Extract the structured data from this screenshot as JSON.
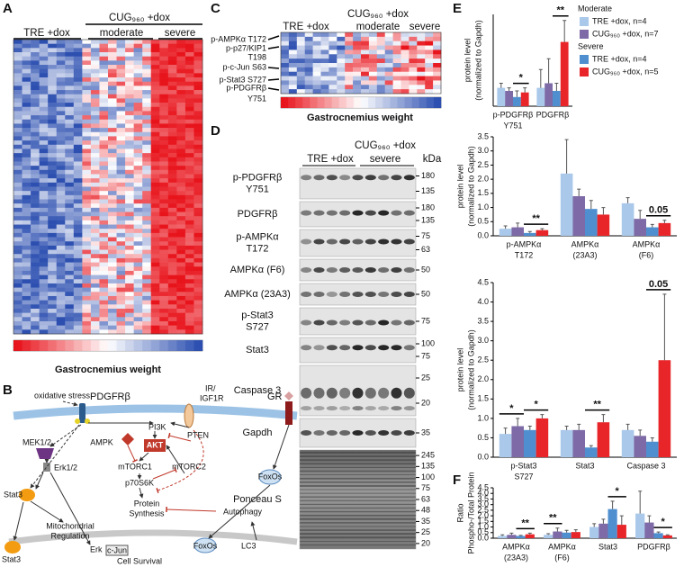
{
  "panels": {
    "a": "A",
    "b": "B",
    "c": "C",
    "d": "D",
    "e": "E",
    "f": "F"
  },
  "panel_a": {
    "tre": "TRE +dox",
    "cug": "CUG₉₆₀ +dox",
    "moderate": "moderate",
    "severe": "severe",
    "colorbar_label": "Gastrocnemius weight"
  },
  "panel_c": {
    "tre": "TRE +dox",
    "cug": "CUG₉₆₀ +dox",
    "moderate": "moderate",
    "severe": "severe",
    "colorbar_label": "Gastrocnemius weight",
    "rows": [
      "p-AMPKα T172",
      "p-p27/KIP1",
      "T198",
      "p-c-Jun S63",
      "p-Stat3 S727",
      "p-PDGFRβ",
      "Y751"
    ]
  },
  "panel_d": {
    "tre": "TRE +dox",
    "cug": "CUG₉₆₀ +dox",
    "severe": "severe",
    "kda": "kDa",
    "rows": [
      {
        "label": [
          "p-PDGFRβ",
          "Y751"
        ],
        "markers": [
          180,
          135
        ]
      },
      {
        "label": [
          "PDGFRβ"
        ],
        "markers": [
          180,
          135
        ]
      },
      {
        "label": [
          "p-AMPKα",
          "T172"
        ],
        "markers": [
          75,
          63
        ]
      },
      {
        "label": [
          "AMPKα (F6)"
        ],
        "markers": [
          50
        ]
      },
      {
        "label": [
          "AMPKα (23A3)"
        ],
        "markers": [
          50
        ]
      },
      {
        "label": [
          "p-Stat3",
          "S727"
        ],
        "markers": [
          75
        ]
      },
      {
        "label": [
          "Stat3"
        ],
        "markers": [
          100,
          75
        ]
      },
      {
        "label": [
          "Caspase 3"
        ],
        "markers": [
          25,
          20
        ]
      },
      {
        "label": [
          "Gapdh"
        ],
        "markers": [
          35
        ]
      },
      {
        "label": [
          "Ponceau S"
        ],
        "markers": [
          245,
          135,
          100,
          75,
          63,
          48,
          35,
          25,
          20
        ]
      }
    ]
  },
  "panel_b": {
    "oxidative_stress": "oxidative stress",
    "pdgfrb": "PDGFRβ",
    "ir": "IR/",
    "igf1r": "IGF1R",
    "gr": "GR",
    "pi3k": "PI3K",
    "ampk": "AMPK",
    "akt": "AKT",
    "pten": "PTEN",
    "mek": "MEK1/2",
    "erk12": "Erk1/2",
    "mtorc1": "mTORC1",
    "mtorc2": "mTORC2",
    "p70s6k": "p70S6K",
    "foxos_top": "FoxOs",
    "stat3_top": "Stat3",
    "mito1": "Mitochondrial",
    "mito2": "Regulation",
    "protein1": "Protein",
    "protein2": "Synthesis",
    "autophagy": "Autophagy",
    "stat3_bottom": "Stat3",
    "erk": "Erk",
    "cjun": "c-Jun",
    "survival": "Cell Survival",
    "foxos_bottom": "FoxOs",
    "lc3": "LC3"
  },
  "chart_data": [
    {
      "type": "bar",
      "y_label": [
        "protein level",
        "(normalized to Gapdh)"
      ],
      "ylim": [
        0,
        3
      ],
      "legend_groups": [
        "Moderate",
        "Severe"
      ],
      "categories": [
        [
          "p-PDGFRβ",
          "Y751"
        ],
        [
          "PDGFRβ"
        ]
      ],
      "series": [
        {
          "name": "TRE +dox, n=4",
          "color": "#a9c8ea",
          "values": [
            0.6,
            0.6
          ],
          "errors": [
            0.15,
            0.6
          ]
        },
        {
          "name": "CUG₉₆₀ +dox, n=7",
          "color": "#7d6aa6",
          "values": [
            0.5,
            0.75
          ],
          "errors": [
            0.1,
            0.8
          ]
        },
        {
          "name": "TRE +dox, n=4",
          "color": "#4f8fd0",
          "values": [
            0.3,
            0.5
          ],
          "errors": [
            0.2,
            0.25
          ]
        },
        {
          "name": "CUG₉₆₀ +dox, n=5",
          "color": "#e8262a",
          "values": [
            0.45,
            2.1
          ],
          "errors": [
            0.15,
            0.7
          ]
        }
      ],
      "marks_moderate": [
        null,
        null
      ],
      "marks_severe": [
        "*",
        "**"
      ]
    },
    {
      "type": "bar",
      "y_label": [
        "protein level",
        "(normalized to Gapdh)"
      ],
      "ylim": [
        0,
        3.5
      ],
      "yticks": [
        {
          "value": 0,
          "label": "0.0"
        },
        0.5,
        {
          "value": 1,
          "label": "1.0"
        },
        1.5,
        {
          "value": 2,
          "label": "2.0"
        },
        2.5,
        {
          "value": 3,
          "label": "3.0"
        },
        3.5
      ],
      "categories": [
        [
          "p-AMPKα",
          "T172"
        ],
        [
          "AMPKα",
          "(23A3)"
        ],
        [
          "AMPKα",
          "(F6)"
        ]
      ],
      "series": [
        {
          "color": "#a9c8ea",
          "values": [
            0.25,
            2.2,
            1.15
          ],
          "errors": [
            0.1,
            1.2,
            0.2
          ]
        },
        {
          "color": "#7d6aa6",
          "values": [
            0.3,
            1.4,
            0.6
          ],
          "errors": [
            0.15,
            0.25,
            0.3
          ]
        },
        {
          "color": "#4f8fd0",
          "values": [
            0.1,
            0.95,
            0.3
          ],
          "errors": [
            0.05,
            0.3,
            0.1
          ]
        },
        {
          "color": "#e8262a",
          "values": [
            0.2,
            0.75,
            0.45
          ],
          "errors": [
            0.05,
            0.25,
            0.1
          ]
        }
      ],
      "marks_moderate": [
        null,
        null,
        null
      ],
      "marks_severe": [
        "**",
        null,
        "0.05"
      ]
    },
    {
      "type": "bar",
      "y_label": [
        "protein level",
        "(normalized to Gapdh)"
      ],
      "ylim": [
        0,
        4.5
      ],
      "yticks": [
        {
          "value": 0,
          "label": "0.0"
        },
        0.5,
        {
          "value": 1,
          "label": "1.0"
        },
        1.5,
        {
          "value": 2,
          "label": "2.0"
        },
        2.5,
        {
          "value": 3,
          "label": "3.0"
        },
        3.5,
        {
          "value": 4,
          "label": "4.0"
        },
        4.5
      ],
      "categories": [
        [
          "p-Stat3",
          "S727"
        ],
        [
          "Stat3"
        ],
        [
          "Caspase 3"
        ]
      ],
      "series": [
        {
          "color": "#a9c8ea",
          "values": [
            0.6,
            0.7,
            0.7
          ],
          "errors": [
            0.15,
            0.1,
            0.15
          ]
        },
        {
          "color": "#7d6aa6",
          "values": [
            0.8,
            0.7,
            0.55
          ],
          "errors": [
            0.2,
            0.15,
            0.15
          ]
        },
        {
          "color": "#4f8fd0",
          "values": [
            0.7,
            0.25,
            0.4
          ],
          "errors": [
            0.1,
            0.05,
            0.1
          ]
        },
        {
          "color": "#e8262a",
          "values": [
            1.0,
            0.9,
            2.5
          ],
          "errors": [
            0.1,
            0.2,
            1.7
          ]
        }
      ],
      "marks_moderate": [
        "*",
        null,
        null
      ],
      "marks_severe": [
        "*",
        "**",
        "0.05"
      ]
    },
    {
      "type": "bar",
      "y_label": [
        "Ratio",
        "Phospho-/Total Protein"
      ],
      "ylim": [
        0,
        4.5
      ],
      "yticks": [
        {
          "value": 0,
          "label": "0.0"
        },
        0.5,
        {
          "value": 1,
          "label": "1.0"
        },
        1.5,
        {
          "value": 2,
          "label": "2.0"
        },
        2.5,
        {
          "value": 3,
          "label": "3.0"
        },
        3.5,
        {
          "value": 4,
          "label": "4.0"
        },
        4.5
      ],
      "categories": [
        [
          "AMPKα",
          "(23A3)"
        ],
        [
          "AMPKα",
          "(F6)"
        ],
        [
          "Stat3"
        ],
        [
          "PDGFRβ"
        ]
      ],
      "series": [
        {
          "color": "#a9c8ea",
          "values": [
            0.2,
            0.3,
            1.0,
            2.2
          ],
          "errors": [
            0.1,
            0.1,
            0.3,
            2.0
          ]
        },
        {
          "color": "#7d6aa6",
          "values": [
            0.3,
            0.6,
            1.3,
            1.4
          ],
          "errors": [
            0.15,
            0.3,
            0.4,
            0.6
          ]
        },
        {
          "color": "#4f8fd0",
          "values": [
            0.2,
            0.5,
            2.6,
            0.45
          ],
          "errors": [
            0.05,
            0.2,
            0.7,
            0.1
          ]
        },
        {
          "color": "#e8262a",
          "values": [
            0.35,
            0.55,
            1.2,
            0.25
          ],
          "errors": [
            0.1,
            0.2,
            0.8,
            0.05
          ]
        }
      ],
      "marks_moderate": [
        null,
        "**",
        null,
        null
      ],
      "marks_severe": [
        "**",
        null,
        "*",
        "*"
      ]
    }
  ]
}
